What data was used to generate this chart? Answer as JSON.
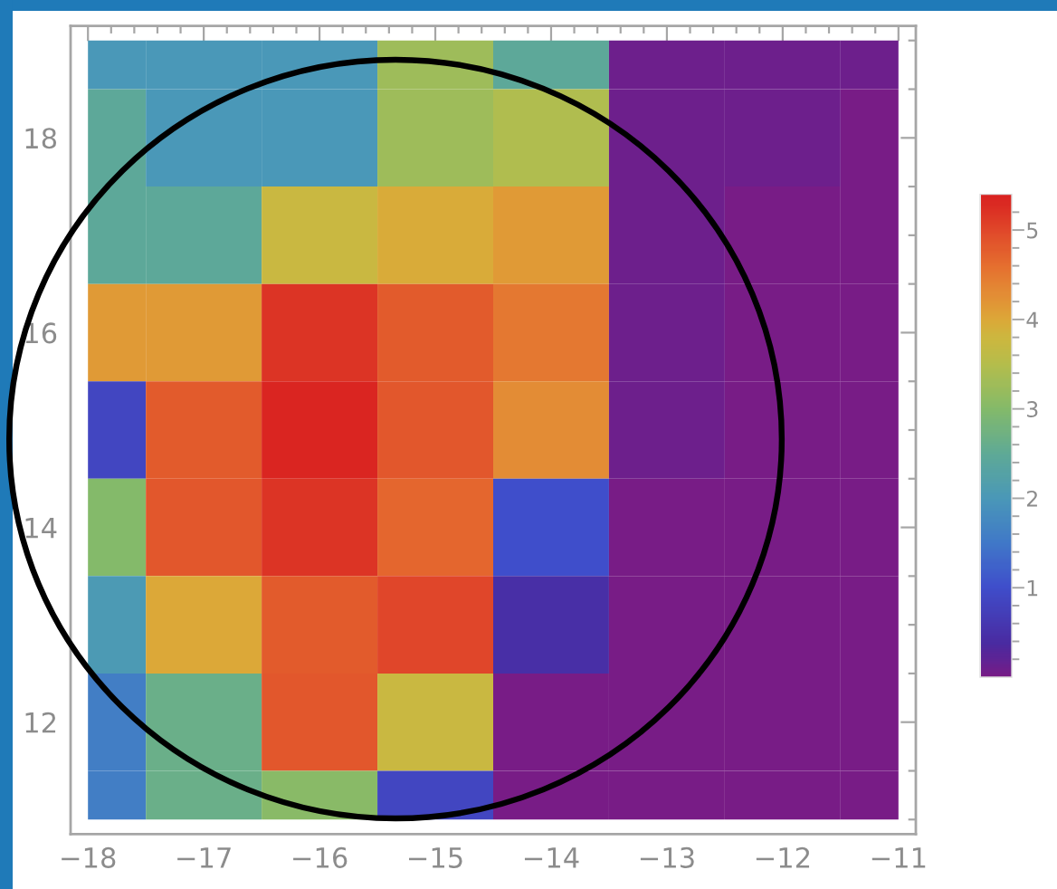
{
  "chart_data": {
    "type": "heatmap",
    "x": [
      -17.75,
      -17,
      -16,
      -15,
      -14,
      -13,
      -12,
      -11.25
    ],
    "y": [
      18.75,
      18,
      17,
      16,
      15,
      14,
      13,
      12,
      11.25
    ],
    "cells": [
      [
        2.0,
        2.0,
        2.0,
        3.25,
        2.45,
        0.1,
        0.1,
        0.1
      ],
      [
        2.45,
        2.0,
        2.0,
        3.25,
        3.45,
        0.1,
        0.1,
        0
      ],
      [
        2.45,
        2.45,
        3.75,
        3.95,
        4.15,
        0.1,
        0,
        0
      ],
      [
        4.15,
        4.15,
        5.2,
        4.8,
        4.5,
        0.1,
        0,
        0
      ],
      [
        0.85,
        4.8,
        5.35,
        4.85,
        4.3,
        0.1,
        0,
        0
      ],
      [
        3.0,
        4.85,
        5.2,
        4.7,
        1.0,
        0,
        0,
        0
      ],
      [
        2.05,
        4.0,
        4.8,
        5.0,
        0.45,
        0,
        0,
        0
      ],
      [
        1.6,
        2.65,
        4.85,
        3.75,
        0,
        0,
        0,
        0
      ],
      [
        1.6,
        2.65,
        3.05,
        0.85,
        0,
        0,
        0,
        0
      ]
    ],
    "clim": [
      0,
      5.4
    ],
    "cticks": [
      {
        "value": 0.2,
        "label": null
      },
      {
        "value": 0.4,
        "label": null
      },
      {
        "value": 0.6,
        "label": null
      },
      {
        "value": 0.8,
        "label": null
      },
      1,
      {
        "value": 1.2,
        "label": null
      },
      {
        "value": 1.4,
        "label": null
      },
      {
        "value": 1.6,
        "label": null
      },
      {
        "value": 1.8,
        "label": null
      },
      2,
      {
        "value": 2.2,
        "label": null
      },
      {
        "value": 2.4,
        "label": null
      },
      {
        "value": 2.6,
        "label": null
      },
      {
        "value": 2.8,
        "label": null
      },
      3,
      {
        "value": 3.2,
        "label": null
      },
      {
        "value": 3.4,
        "label": null
      },
      {
        "value": 3.6,
        "label": null
      },
      {
        "value": 3.8,
        "label": null
      },
      4,
      {
        "value": 4.2,
        "label": null
      },
      {
        "value": 4.4,
        "label": null
      },
      {
        "value": 4.6,
        "label": null
      },
      {
        "value": 4.8,
        "label": null
      },
      5,
      {
        "value": 5.2,
        "label": null
      }
    ],
    "xlim": [
      -18.15,
      -10.85
    ],
    "ylim": [
      10.85,
      19.15
    ],
    "xticks": [
      {
        "value": -18,
        "label": "−18"
      },
      {
        "value": -17.8,
        "label": null
      },
      {
        "value": -17.6,
        "label": null
      },
      {
        "value": -17.4,
        "label": null
      },
      {
        "value": -17.2,
        "label": null
      },
      {
        "value": -17,
        "label": "−17"
      },
      {
        "value": -16.8,
        "label": null
      },
      {
        "value": -16.6,
        "label": null
      },
      {
        "value": -16.4,
        "label": null
      },
      {
        "value": -16.2,
        "label": null
      },
      {
        "value": -16,
        "label": "−16"
      },
      {
        "value": -15.8,
        "label": null
      },
      {
        "value": -15.6,
        "label": null
      },
      {
        "value": -15.4,
        "label": null
      },
      {
        "value": -15.2,
        "label": null
      },
      {
        "value": -15,
        "label": "−15"
      },
      {
        "value": -14.8,
        "label": null
      },
      {
        "value": -14.6,
        "label": null
      },
      {
        "value": -14.4,
        "label": null
      },
      {
        "value": -14.2,
        "label": null
      },
      {
        "value": -14,
        "label": "−14"
      },
      {
        "value": -13.8,
        "label": null
      },
      {
        "value": -13.6,
        "label": null
      },
      {
        "value": -13.4,
        "label": null
      },
      {
        "value": -13.2,
        "label": null
      },
      {
        "value": -13,
        "label": "−13"
      },
      {
        "value": -12.8,
        "label": null
      },
      {
        "value": -12.6,
        "label": null
      },
      {
        "value": -12.4,
        "label": null
      },
      {
        "value": -12.2,
        "label": null
      },
      {
        "value": -12,
        "label": "−12"
      },
      {
        "value": -11.8,
        "label": null
      },
      {
        "value": -11.6,
        "label": null
      },
      {
        "value": -11.4,
        "label": null
      },
      {
        "value": -11.2,
        "label": null
      },
      {
        "value": -11,
        "label": "−11"
      }
    ],
    "yticks": [
      {
        "value": 11,
        "label": null
      },
      {
        "value": 11.5,
        "label": null
      },
      12,
      {
        "value": 12.5,
        "label": null
      },
      {
        "value": 13,
        "label": null
      },
      {
        "value": 13.5,
        "label": null
      },
      14,
      {
        "value": 14.5,
        "label": null
      },
      {
        "value": 15,
        "label": null
      },
      {
        "value": 15.5,
        "label": null
      },
      16,
      {
        "value": 16.5,
        "label": null
      },
      {
        "value": 17,
        "label": null
      },
      {
        "value": 17.5,
        "label": null
      },
      18,
      {
        "value": 18.5,
        "label": null
      },
      {
        "value": 19,
        "label": null
      }
    ]
  }
}
